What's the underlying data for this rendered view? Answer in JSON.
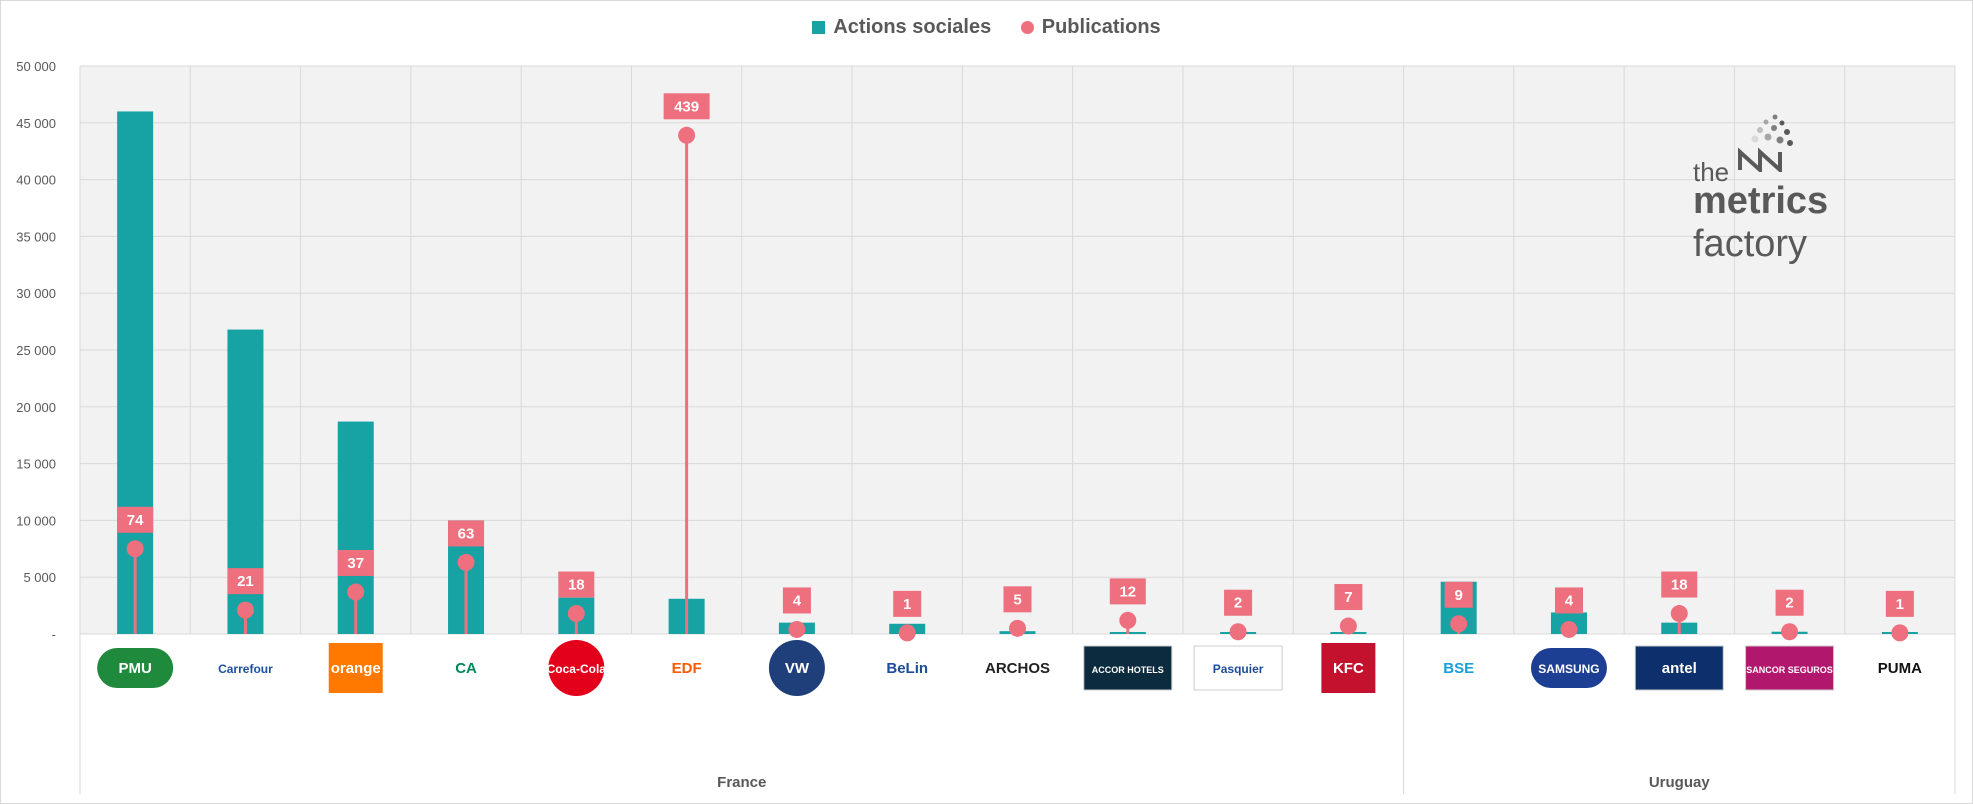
{
  "legend": {
    "bars": "Actions sociales",
    "points": "Publications"
  },
  "colors": {
    "bars": "#17a2a3",
    "points": "#ee6f7d",
    "plot_bg": "#f2f2f2",
    "grid": "#d9d9d9",
    "axis_text": "#595959"
  },
  "watermark": {
    "the": "the",
    "metrics": "metrics",
    "factory": "factory"
  },
  "chart_data": {
    "type": "bar",
    "title": "",
    "xlabel": "",
    "ylabel": "",
    "ylim": [
      0,
      50000
    ],
    "yticks": [
      0,
      5000,
      10000,
      15000,
      20000,
      25000,
      30000,
      35000,
      40000,
      45000,
      50000
    ],
    "ytick_labels": [
      "-",
      "5 000",
      "10 000",
      "15 000",
      "20 000",
      "25 000",
      "30 000",
      "35 000",
      "40 000",
      "45 000",
      "50 000"
    ],
    "categories": [
      "PMU",
      "Carrefour",
      "orange",
      "Crédit Agricole",
      "Coca-Cola",
      "EDF",
      "Volkswagen",
      "Belin",
      "ARCHOS",
      "Accor Hotels",
      "Pasquier",
      "KFC",
      "BSE",
      "SAMSUNG",
      "antel",
      "Sancor Seguros",
      "PUMA"
    ],
    "logo_texts": [
      "PMU",
      "Carrefour",
      "orange",
      "CA",
      "Coca-Cola",
      "EDF",
      "VW",
      "BeLin",
      "ARCHOS",
      "ACCOR HOTELS",
      "Pasquier",
      "KFC",
      "BSE",
      "SAMSUNG",
      "antel",
      "SANCOR SEGUROS",
      "PUMA"
    ],
    "groups": [
      {
        "name": "France",
        "count": 12
      },
      {
        "name": "Uruguay",
        "count": 5
      }
    ],
    "series": [
      {
        "name": "Actions sociales",
        "kind": "bar",
        "values": [
          46000,
          26800,
          18700,
          10000,
          3200,
          3100,
          1000,
          900,
          250,
          150,
          120,
          60,
          4600,
          1900,
          1000,
          200,
          120
        ]
      },
      {
        "name": "Publications",
        "kind": "lollipop",
        "values": [
          74,
          21,
          37,
          63,
          18,
          439,
          4,
          1,
          5,
          12,
          2,
          7,
          9,
          4,
          18,
          2,
          1
        ],
        "labels": [
          "74",
          "21",
          "37",
          "63",
          "18",
          "439",
          "4",
          "1",
          "5",
          "12",
          "2",
          "7",
          "9",
          "4",
          "18",
          "2",
          "1"
        ],
        "point_y": [
          7500,
          2100,
          3700,
          6300,
          1800,
          43900,
          400,
          100,
          500,
          1200,
          200,
          700,
          900,
          400,
          1800,
          200,
          100
        ]
      }
    ]
  }
}
